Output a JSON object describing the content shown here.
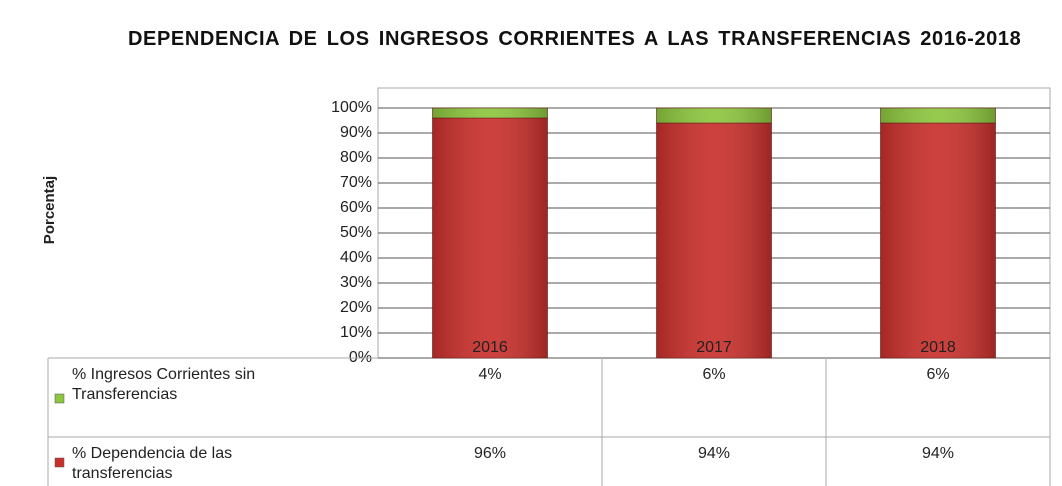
{
  "chart_data": {
    "type": "stacked_bar",
    "title": "DEPENDENCIA DE LOS INGRESOS CORRIENTES A LAS TRANSFERENCIAS 2016-2018",
    "y_label": "Porcentaj",
    "categories": [
      "2016",
      "2017",
      "2018"
    ],
    "series": [
      {
        "name": "% Dependencia de las transferencias",
        "color": "#c9302c",
        "values": [
          96,
          94,
          94
        ],
        "value_labels": [
          "96%",
          "94%",
          "94%"
        ]
      },
      {
        "name": "% Ingresos Corrientes sin Transferencias",
        "color": "#8dc63f",
        "values": [
          4,
          6,
          6
        ],
        "value_labels": [
          "4%",
          "6%",
          "6%"
        ]
      }
    ],
    "ylim": [
      0,
      108
    ],
    "yticks": [
      {
        "value": 0,
        "label": "0%"
      },
      {
        "value": 10,
        "label": "10%"
      },
      {
        "value": 20,
        "label": "20%"
      },
      {
        "value": 30,
        "label": "30%"
      },
      {
        "value": 40,
        "label": "40%"
      },
      {
        "value": 50,
        "label": "50%"
      },
      {
        "value": 60,
        "label": "60%"
      },
      {
        "value": 70,
        "label": "70%"
      },
      {
        "value": 80,
        "label": "80%"
      },
      {
        "value": 90,
        "label": "90%"
      },
      {
        "value": 100,
        "label": "100%"
      }
    ],
    "grid": true,
    "data_table": true
  }
}
